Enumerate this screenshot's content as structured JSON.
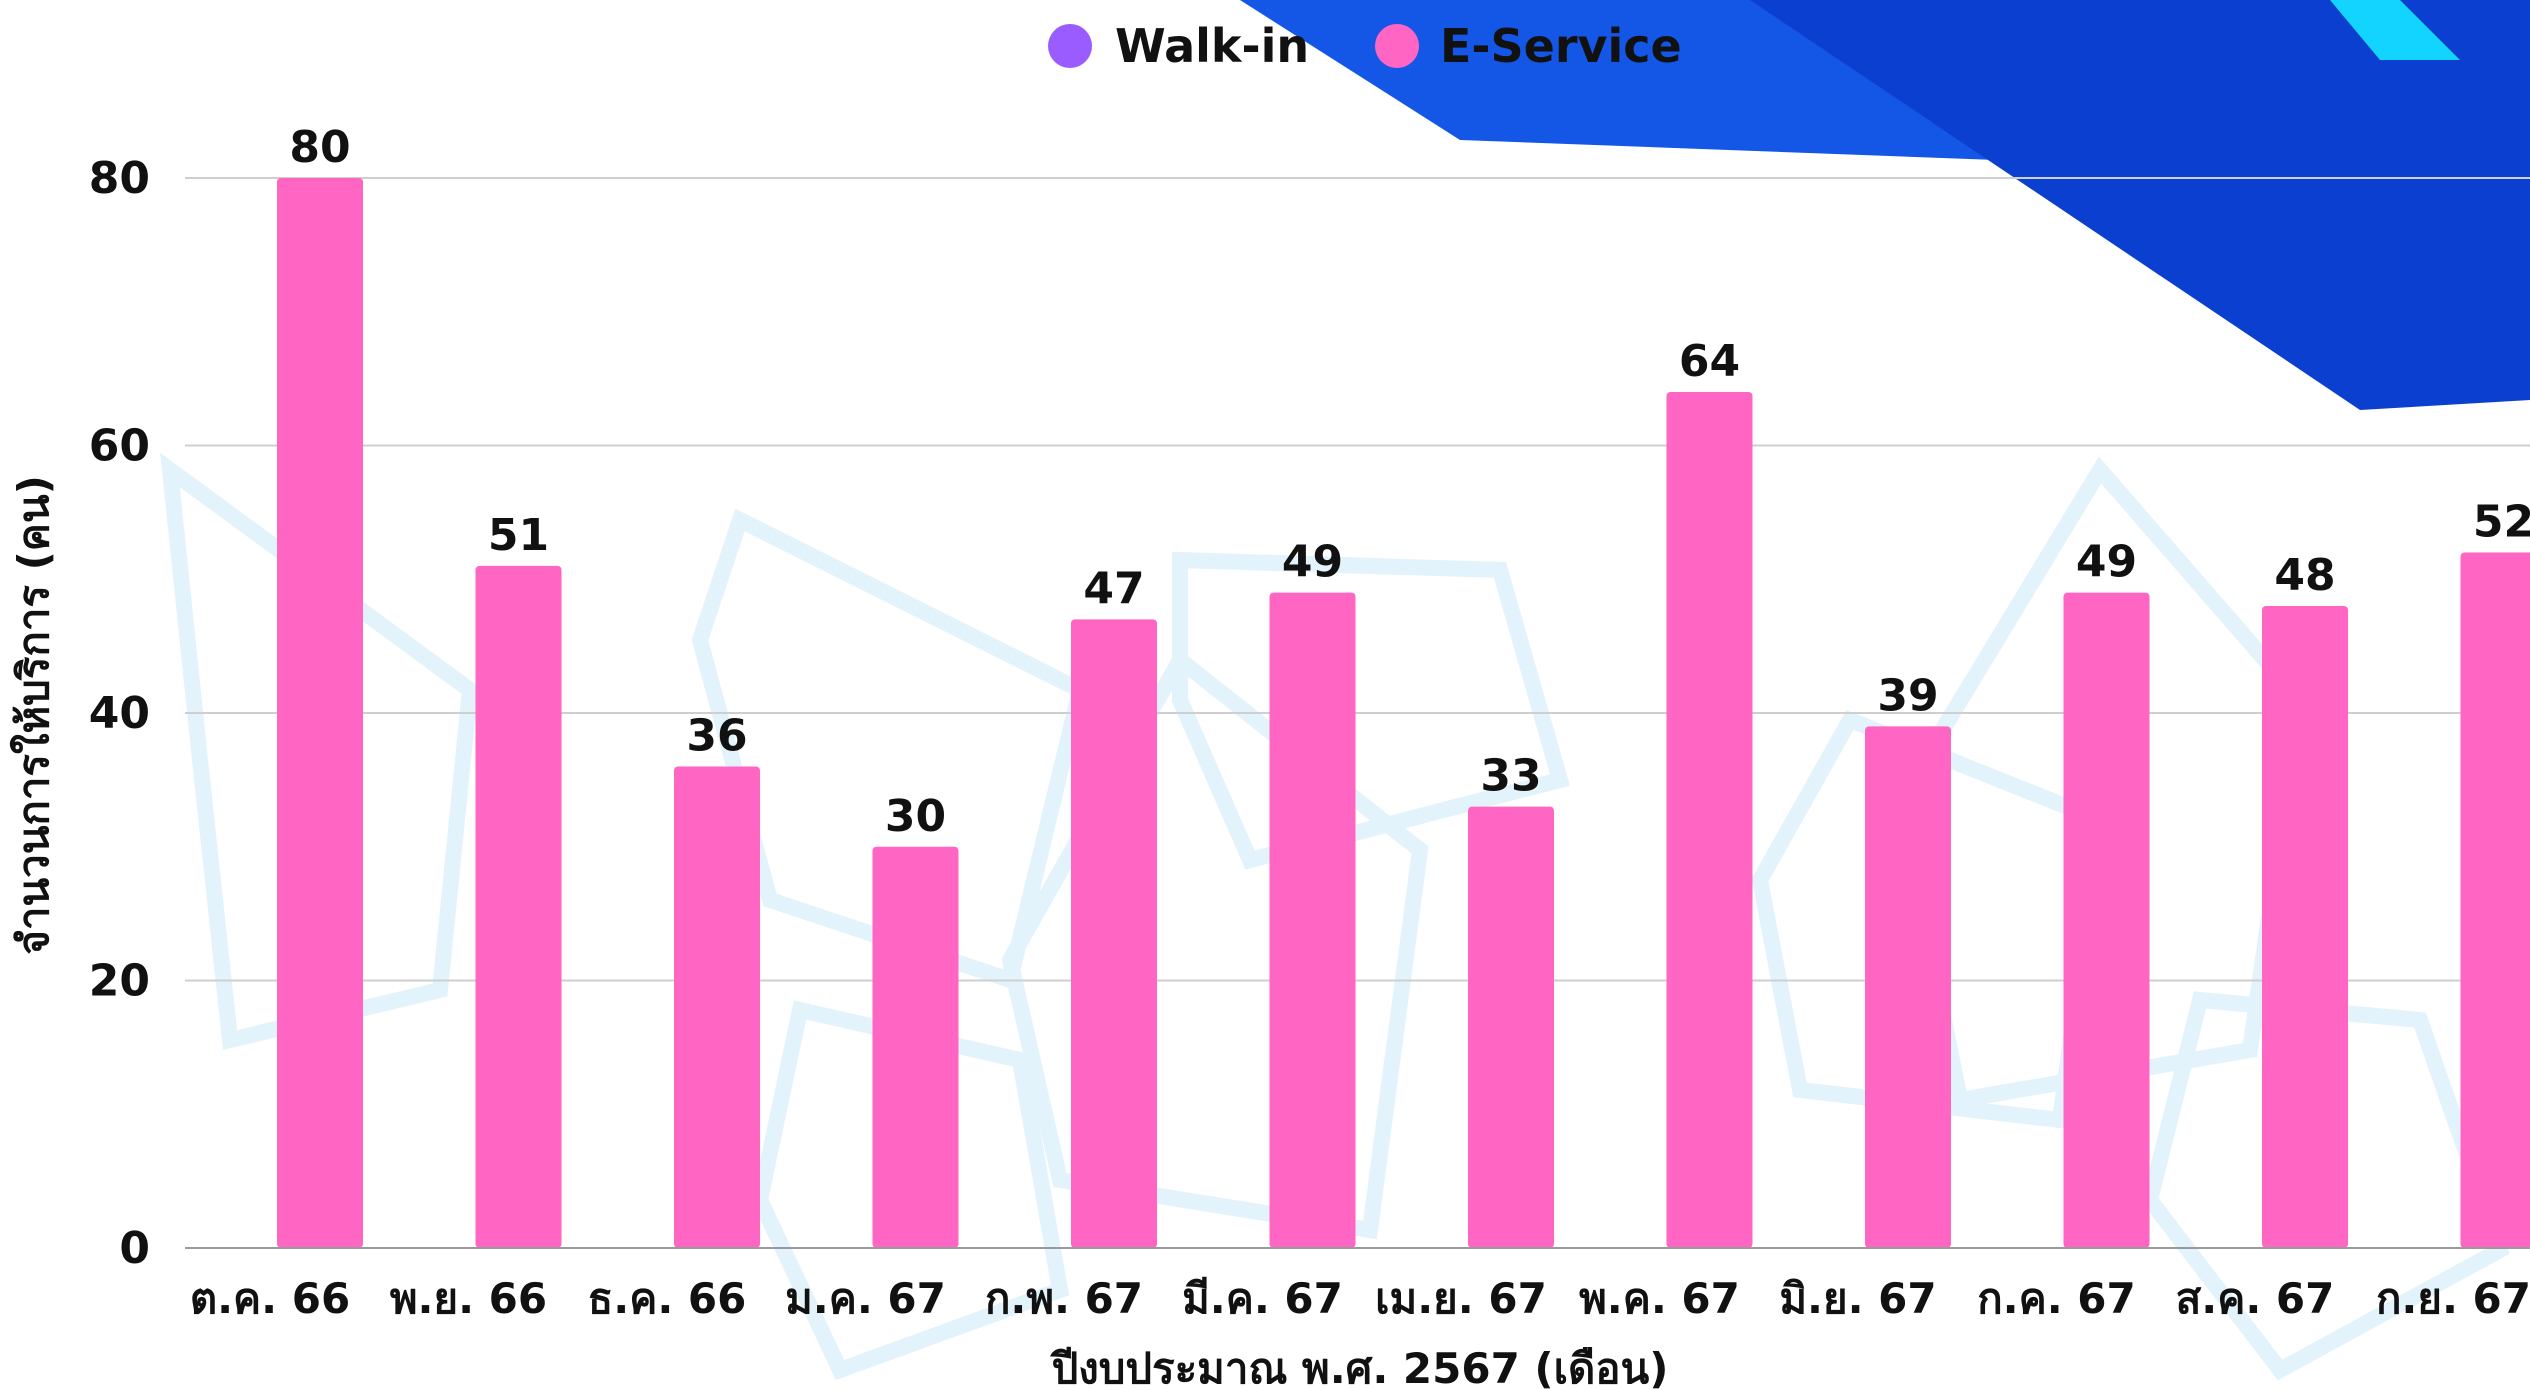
{
  "chart_data": {
    "type": "bar",
    "categories": [
      "ต.ค. 66",
      "พ.ย. 66",
      "ธ.ค. 66",
      "ม.ค. 67",
      "ก.พ. 67",
      "มี.ค. 67",
      "เม.ย. 67",
      "พ.ค. 67",
      "มิ.ย. 67",
      "ก.ค. 67",
      "ส.ค. 67",
      "ก.ย. 67"
    ],
    "series": [
      {
        "name": "Walk-in",
        "color": "#9b5cff",
        "values": [
          0,
          0,
          0,
          0,
          0,
          0,
          0,
          0,
          0,
          0,
          0,
          0
        ]
      },
      {
        "name": "E-Service",
        "color": "#ff66c4",
        "values": [
          80,
          51,
          36,
          30,
          47,
          49,
          33,
          64,
          39,
          49,
          48,
          52
        ]
      }
    ],
    "xlabel": "ปีงบประมาณ พ.ศ. 2567 (เดือน)",
    "ylabel": "จำนวนการให้บริการ (คน)",
    "ylim": [
      0,
      80
    ],
    "yticks": [
      0,
      20,
      40,
      60,
      80
    ],
    "grid": true,
    "legend_position": "top-center"
  }
}
